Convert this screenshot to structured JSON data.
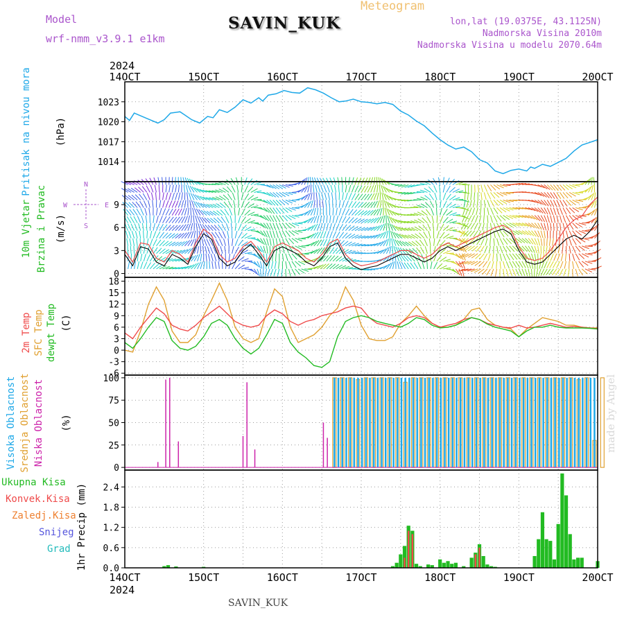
{
  "header": {
    "model_label": "Model",
    "model_name": "wrf-nmm_v3.9.1  e1km",
    "station": "SAVIN_KUK",
    "product": "Meteogram",
    "lonlat": "lon,lat (19.0375E, 43.1125N)",
    "elevation": "Nadmorska Visina 2010m",
    "model_elevation": "Nadmorska Visina u modelu 2070.64m",
    "footer_station": "SAVIN_KUK",
    "credit": "made by Angel"
  },
  "colors": {
    "pressure": "#1ea8e8",
    "t2m": "#ef4a4a",
    "sfc": "#e0a030",
    "dewpt": "#22bb22",
    "low_cloud": "#cc22aa",
    "mid_cloud": "#e0a030",
    "high_cloud": "#1ea8e8",
    "total_precip": "#22bb22",
    "conv_precip": "#ef4a4a",
    "ice_precip": "#ee8030",
    "snow": "#5555dd",
    "hail": "#22bbbb",
    "model_label": "#aa55cc"
  },
  "chart_data": [
    {
      "type": "line",
      "panel": "pressure",
      "x_ticks": [
        "14OCT",
        "15OCT",
        "16OCT",
        "17OCT",
        "18OCT",
        "19OCT",
        "20OCT"
      ],
      "year": "2024",
      "ylabel_lines": [
        "Pritisak na nivou mora"
      ],
      "unit": "(hPa)",
      "yticks": [
        1014,
        1017,
        1020,
        1023
      ],
      "ylim": [
        1011,
        1026
      ],
      "x_days": [
        0.0,
        0.06,
        0.12,
        0.22,
        0.3,
        0.42,
        0.5,
        0.58,
        0.7,
        0.75,
        0.85,
        0.95,
        1.05,
        1.12,
        1.2,
        1.3,
        1.4,
        1.5,
        1.6,
        1.7,
        1.75,
        1.82,
        1.92,
        2.02,
        2.12,
        2.22,
        2.32,
        2.42,
        2.52,
        2.62,
        2.72,
        2.8,
        2.9,
        3.0,
        3.1,
        3.2,
        3.3,
        3.4,
        3.5,
        3.6,
        3.7,
        3.8,
        3.9,
        4.0,
        4.1,
        4.2,
        4.3,
        4.4,
        4.5,
        4.6,
        4.7,
        4.8,
        4.9,
        5.0,
        5.1,
        5.15,
        5.2,
        5.3,
        5.4,
        5.5,
        5.6,
        5.7,
        5.8,
        5.9,
        6.0
      ],
      "series": [
        {
          "values": [
            1020.8,
            1020.2,
            1021.3,
            1020.8,
            1020.4,
            1019.8,
            1020.3,
            1021.3,
            1021.5,
            1021.1,
            1020.3,
            1019.8,
            1020.8,
            1020.6,
            1021.8,
            1021.4,
            1022.2,
            1023.3,
            1022.8,
            1023.6,
            1023.1,
            1024.0,
            1024.2,
            1024.7,
            1024.4,
            1024.3,
            1025.1,
            1024.8,
            1024.3,
            1023.6,
            1023.0,
            1023.1,
            1023.4,
            1023.0,
            1022.9,
            1022.7,
            1022.9,
            1022.6,
            1021.6,
            1021.0,
            1020.1,
            1019.4,
            1018.3,
            1017.3,
            1016.5,
            1015.9,
            1016.2,
            1015.5,
            1014.3,
            1013.8,
            1012.6,
            1012.2,
            1012.7,
            1012.9,
            1012.6,
            1013.2,
            1013.0,
            1013.6,
            1013.3,
            1013.9,
            1014.5,
            1015.6,
            1016.5,
            1016.9,
            1017.3
          ]
        }
      ]
    },
    {
      "type": "line",
      "panel": "wind",
      "ylabel_lines": [
        "10m Vjetar",
        "Brzina i Pravac"
      ],
      "unit": "(m/s)",
      "compass": {
        "north": "N",
        "west": "W",
        "east": "E",
        "south": "S"
      },
      "yticks": [
        0,
        3,
        6,
        9
      ],
      "ylim": [
        -0.5,
        12
      ],
      "x_days": [
        0.0,
        0.1,
        0.2,
        0.3,
        0.4,
        0.5,
        0.6,
        0.7,
        0.8,
        0.9,
        1.0,
        1.1,
        1.2,
        1.3,
        1.4,
        1.5,
        1.6,
        1.7,
        1.8,
        1.9,
        2.0,
        2.1,
        2.2,
        2.3,
        2.4,
        2.5,
        2.6,
        2.7,
        2.8,
        2.9,
        3.0,
        3.1,
        3.2,
        3.3,
        3.4,
        3.5,
        3.6,
        3.7,
        3.8,
        3.9,
        4.0,
        4.1,
        4.2,
        4.3,
        4.4,
        4.5,
        4.6,
        4.7,
        4.8,
        4.9,
        5.0,
        5.1,
        5.2,
        5.3,
        5.4,
        5.5,
        5.6,
        5.7,
        5.8,
        5.9,
        6.0
      ],
      "series": [
        {
          "name": "mean",
          "values": [
            2.5,
            1.0,
            3.5,
            3.2,
            1.5,
            1.0,
            2.5,
            2.0,
            1.2,
            3.5,
            5.2,
            4.5,
            2.0,
            1.0,
            1.5,
            3.0,
            3.8,
            2.5,
            1.0,
            3.0,
            3.5,
            3.0,
            2.5,
            1.5,
            1.0,
            2.0,
            3.5,
            4.0,
            2.0,
            1.0,
            0.5,
            0.8,
            1.0,
            1.5,
            2.0,
            2.5,
            2.5,
            2.0,
            1.5,
            2.0,
            3.0,
            3.5,
            3.0,
            3.5,
            4.0,
            4.5,
            5.0,
            5.5,
            5.8,
            5.2,
            3.0,
            1.5,
            1.2,
            1.5,
            2.5,
            3.5,
            4.5,
            5.0,
            4.5,
            5.5,
            7.0
          ]
        },
        {
          "name": "gust",
          "values": [
            3.0,
            1.5,
            4.0,
            3.8,
            2.0,
            1.5,
            3.0,
            2.5,
            1.5,
            4.0,
            5.8,
            5.0,
            2.5,
            1.5,
            2.0,
            3.5,
            4.2,
            3.0,
            1.5,
            3.5,
            4.0,
            3.5,
            3.0,
            2.0,
            1.5,
            2.5,
            4.0,
            4.5,
            2.5,
            1.5,
            1.0,
            1.2,
            1.5,
            2.0,
            2.5,
            3.0,
            3.0,
            2.5,
            2.0,
            2.5,
            3.5,
            4.0,
            3.5,
            4.0,
            4.5,
            5.0,
            5.5,
            6.0,
            6.3,
            5.7,
            3.5,
            2.0,
            1.7,
            2.0,
            3.0,
            4.5,
            6.0,
            7.0,
            7.5,
            9.0,
            10.0
          ]
        }
      ]
    },
    {
      "type": "line",
      "panel": "temperature",
      "ylabel_lines": [
        "2m Temp",
        "SFC Temp",
        "dewpt Temp"
      ],
      "unit": "(C)",
      "yticks": [
        -6,
        -3,
        0,
        3,
        6,
        9,
        12,
        15,
        18
      ],
      "ylim": [
        -6.5,
        19
      ],
      "x_days": [
        0.0,
        0.1,
        0.2,
        0.3,
        0.4,
        0.5,
        0.6,
        0.7,
        0.8,
        0.9,
        1.0,
        1.1,
        1.2,
        1.3,
        1.4,
        1.5,
        1.6,
        1.7,
        1.8,
        1.9,
        2.0,
        2.1,
        2.2,
        2.3,
        2.4,
        2.5,
        2.6,
        2.7,
        2.8,
        2.9,
        3.0,
        3.1,
        3.2,
        3.3,
        3.4,
        3.5,
        3.6,
        3.7,
        3.8,
        3.9,
        4.0,
        4.1,
        4.2,
        4.3,
        4.4,
        4.5,
        4.6,
        4.7,
        4.8,
        4.9,
        5.0,
        5.1,
        5.2,
        5.3,
        5.4,
        5.5,
        5.6,
        5.7,
        5.8,
        5.9,
        6.0
      ],
      "series": [
        {
          "name": "2m Temp",
          "values": [
            4.5,
            3.0,
            6.0,
            8.5,
            11.0,
            9.5,
            6.5,
            5.5,
            5.0,
            6.5,
            8.5,
            10.0,
            11.5,
            9.5,
            7.5,
            6.5,
            6.0,
            6.5,
            9.0,
            10.5,
            9.5,
            7.5,
            6.5,
            7.5,
            8.0,
            9.0,
            9.5,
            10.0,
            11.0,
            11.5,
            11.0,
            8.5,
            7.0,
            6.5,
            6.0,
            7.0,
            8.5,
            9.0,
            8.5,
            7.0,
            6.0,
            6.5,
            7.0,
            8.0,
            8.5,
            8.0,
            7.0,
            6.5,
            6.0,
            5.8,
            6.5,
            5.8,
            6.0,
            6.5,
            7.0,
            6.5,
            6.0,
            6.2,
            6.0,
            5.8,
            5.6
          ]
        },
        {
          "name": "SFC Temp",
          "values": [
            0.0,
            -0.5,
            5.0,
            12.0,
            16.5,
            13.0,
            5.0,
            2.0,
            2.0,
            4.0,
            9.0,
            13.0,
            17.5,
            13.0,
            6.0,
            3.0,
            2.0,
            3.0,
            10.0,
            16.0,
            14.0,
            6.0,
            2.0,
            3.0,
            4.0,
            6.0,
            9.0,
            11.0,
            16.5,
            13.0,
            6.5,
            3.0,
            2.5,
            2.5,
            3.5,
            7.0,
            9.0,
            11.5,
            9.0,
            7.0,
            6.0,
            6.0,
            6.5,
            8.0,
            10.5,
            11.0,
            8.0,
            6.5,
            6.0,
            5.5,
            3.5,
            5.5,
            7.0,
            8.5,
            8.0,
            7.5,
            6.5,
            6.5,
            6.0,
            5.8,
            5.8
          ]
        },
        {
          "name": "dewpt Temp",
          "values": [
            2.0,
            0.5,
            3.0,
            6.0,
            8.5,
            7.5,
            2.5,
            0.5,
            0.0,
            1.0,
            3.5,
            7.0,
            8.0,
            6.5,
            3.0,
            0.5,
            -1.0,
            0.5,
            4.0,
            8.0,
            7.0,
            2.0,
            -0.5,
            -2.0,
            -4.0,
            -4.5,
            -3.0,
            3.5,
            7.5,
            8.5,
            9.0,
            8.5,
            7.5,
            7.0,
            6.5,
            6.0,
            7.0,
            8.5,
            8.0,
            6.5,
            5.8,
            6.0,
            6.5,
            7.5,
            8.5,
            8.0,
            6.8,
            6.0,
            5.5,
            5.0,
            3.5,
            5.0,
            6.0,
            6.0,
            6.5,
            6.0,
            5.8,
            5.8,
            5.8,
            5.7,
            5.5
          ]
        }
      ]
    },
    {
      "type": "bar",
      "panel": "cloud",
      "ylabel_lines": [
        "Visoka Oblacnost",
        "Srednja Oblacnost",
        "Niska Oblacnost"
      ],
      "unit": "(%)",
      "yticks": [
        0,
        25,
        50,
        75,
        100
      ],
      "ylim": [
        -3,
        103
      ],
      "series": [
        {
          "name": "Niska Oblacnost",
          "x": [
            0.42,
            0.52,
            0.57,
            0.68,
            1.5,
            1.55,
            1.65,
            2.52,
            2.57
          ],
          "values": [
            6,
            98,
            100,
            29,
            35,
            95,
            20,
            50,
            33
          ]
        },
        {
          "name": "Srednja Oblacnost",
          "band": [
            2.66,
            6.0
          ],
          "step": 0.1,
          "values": [
            100,
            100,
            100,
            98,
            100,
            100,
            100,
            100,
            100,
            95,
            100,
            100,
            100,
            100,
            100,
            100,
            100,
            100,
            100,
            100,
            100,
            100,
            100,
            100,
            100,
            100,
            100,
            100,
            100,
            100,
            100,
            98,
            100,
            30,
            100
          ]
        },
        {
          "name": "Visoka Oblacnost",
          "band": [
            2.66,
            6.0
          ],
          "step": 0.05,
          "values": [
            100,
            100,
            100,
            100,
            100,
            100,
            100,
            100,
            100,
            100,
            100,
            100,
            100,
            100,
            100,
            100,
            100,
            100,
            100,
            100,
            100,
            100,
            100,
            100,
            100,
            100,
            100,
            100,
            100,
            100,
            100,
            100,
            100,
            100,
            100,
            100,
            100,
            100,
            100,
            100,
            100,
            100,
            100,
            100,
            100,
            100,
            100,
            100,
            100,
            100,
            100,
            100,
            100,
            100,
            100,
            100,
            100,
            100,
            100,
            100,
            100,
            100,
            100,
            100,
            100,
            100,
            100
          ]
        }
      ]
    },
    {
      "type": "bar",
      "panel": "precip",
      "ylabel_lines": [
        "Ukupna Kisa",
        "Konvek.Kisa",
        "Zaledj.Kisa",
        "Snijeg",
        "Grad"
      ],
      "ylabel": "1hr Precip (mm)",
      "yticks": [
        0,
        0.6,
        1.2,
        1.8,
        2.4
      ],
      "ylim": [
        0,
        2.9
      ],
      "x_ticks": [
        "14OCT",
        "15OCT",
        "16OCT",
        "17OCT",
        "18OCT",
        "19OCT",
        "20OCT"
      ],
      "year": "2024",
      "series": [
        {
          "name": "Ukupna Kisa",
          "x": [
            0.5,
            0.55,
            0.65,
            1.0,
            3.4,
            3.45,
            3.5,
            3.55,
            3.6,
            3.65,
            3.7,
            3.75,
            3.85,
            3.9,
            4.0,
            4.05,
            4.1,
            4.15,
            4.2,
            4.3,
            4.4,
            4.45,
            4.5,
            4.55,
            4.6,
            4.65,
            4.7,
            5.2,
            5.25,
            5.3,
            5.35,
            5.4,
            5.45,
            5.5,
            5.55,
            5.6,
            5.65,
            5.7,
            5.75,
            5.8,
            6.0
          ],
          "values": [
            0.05,
            0.08,
            0.04,
            0.03,
            0.05,
            0.15,
            0.4,
            0.65,
            1.25,
            1.1,
            0.12,
            0.05,
            0.1,
            0.08,
            0.25,
            0.15,
            0.2,
            0.12,
            0.15,
            0.05,
            0.3,
            0.45,
            0.7,
            0.35,
            0.1,
            0.05,
            0.03,
            0.35,
            0.85,
            1.65,
            0.85,
            0.8,
            0.25,
            1.3,
            2.8,
            2.15,
            1.0,
            0.25,
            0.3,
            0.3,
            0.2
          ]
        },
        {
          "name": "Konvek.Kisa",
          "x": [
            3.55,
            3.6,
            3.65,
            4.45,
            4.5
          ],
          "values": [
            0.3,
            1.1,
            1.0,
            0.4,
            0.6
          ]
        }
      ]
    }
  ]
}
